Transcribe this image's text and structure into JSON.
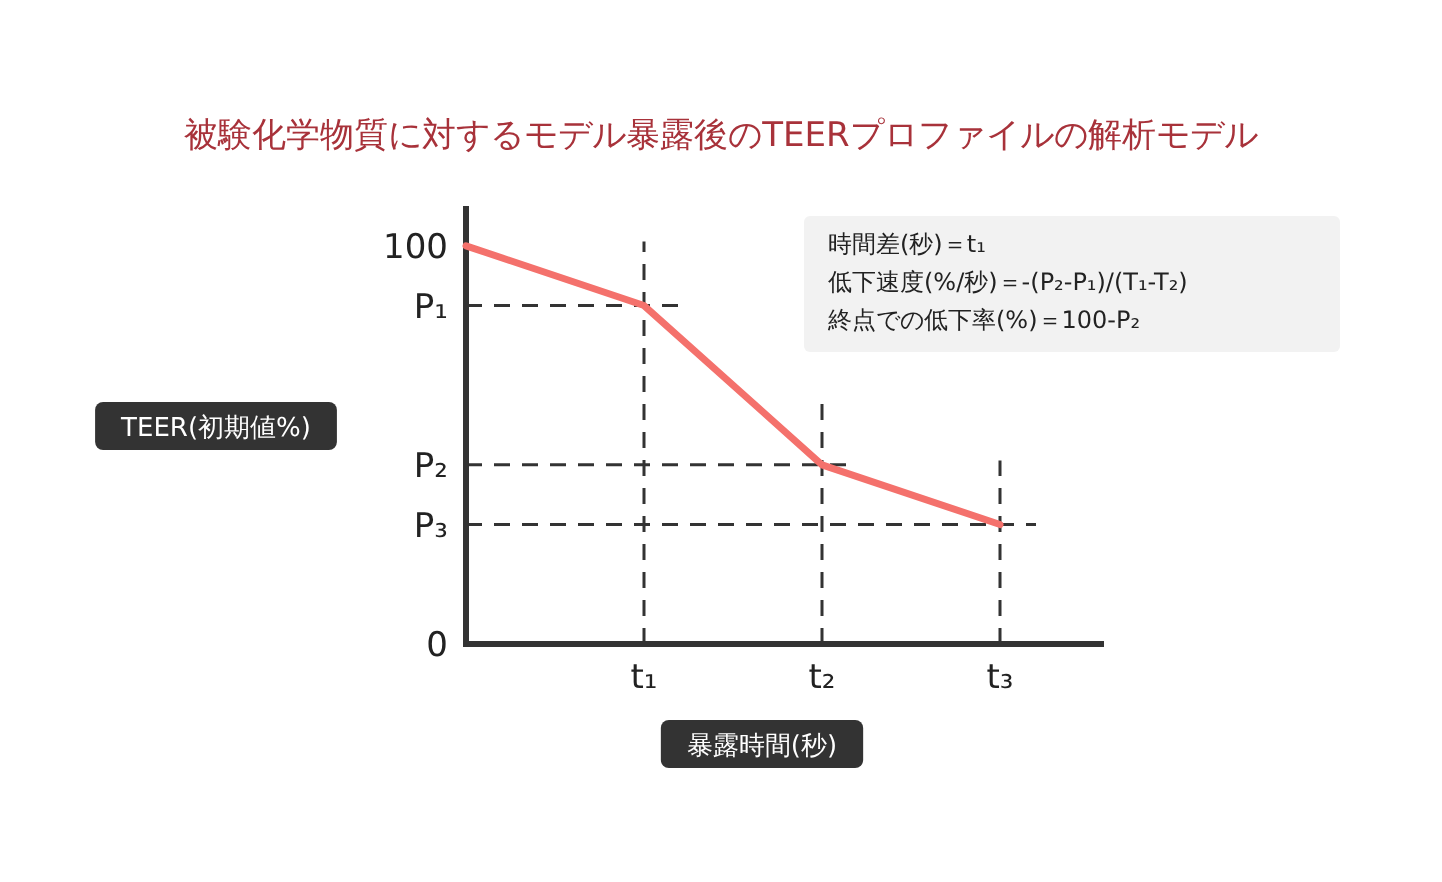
{
  "chart_data": {
    "type": "line",
    "title": "被験化学物質に対するモデル暴露後のTEERプロファイルの解析モデル",
    "xlabel": "暴露時間(秒)",
    "ylabel": "TEER(初期値%)",
    "categories": [
      null,
      "t₁",
      "t₂",
      "t₃"
    ],
    "series": [
      {
        "color": "#f4716c",
        "values": [
          100,
          85,
          45,
          30
        ]
      }
    ],
    "ylim": [
      0,
      110
    ],
    "yticks": [
      0,
      {
        "value": 30,
        "label": "P₃"
      },
      {
        "value": 45,
        "label": "P₂"
      },
      {
        "value": 85,
        "label": "P₁"
      },
      100
    ],
    "ref_lines": [
      {
        "axis": "y",
        "value": 85,
        "label": null,
        "line_style": "dashed",
        "color": "#333333"
      },
      {
        "axis": "y",
        "value": 45,
        "label": null,
        "line_style": "dashed",
        "color": "#333333"
      },
      {
        "axis": "y",
        "value": 30,
        "label": null,
        "line_style": "dashed",
        "color": "#333333"
      },
      {
        "axis": "x",
        "value": "t₁",
        "label": null,
        "line_style": "dashed",
        "color": "#333333"
      },
      {
        "axis": "x",
        "value": "t₂",
        "label": null,
        "line_style": "dashed",
        "color": "#333333"
      },
      {
        "axis": "x",
        "value": "t₃",
        "label": null,
        "line_style": "dashed",
        "color": "#333333"
      }
    ],
    "annotations": [
      "時間差(秒)＝t₁",
      "低下速度(%/秒)＝-(P₂-P₁)/(T₁-T₂)",
      "終点での低下率(%)＝100-P₂"
    ],
    "grid": false,
    "marker": "none",
    "line_style": "solid"
  }
}
